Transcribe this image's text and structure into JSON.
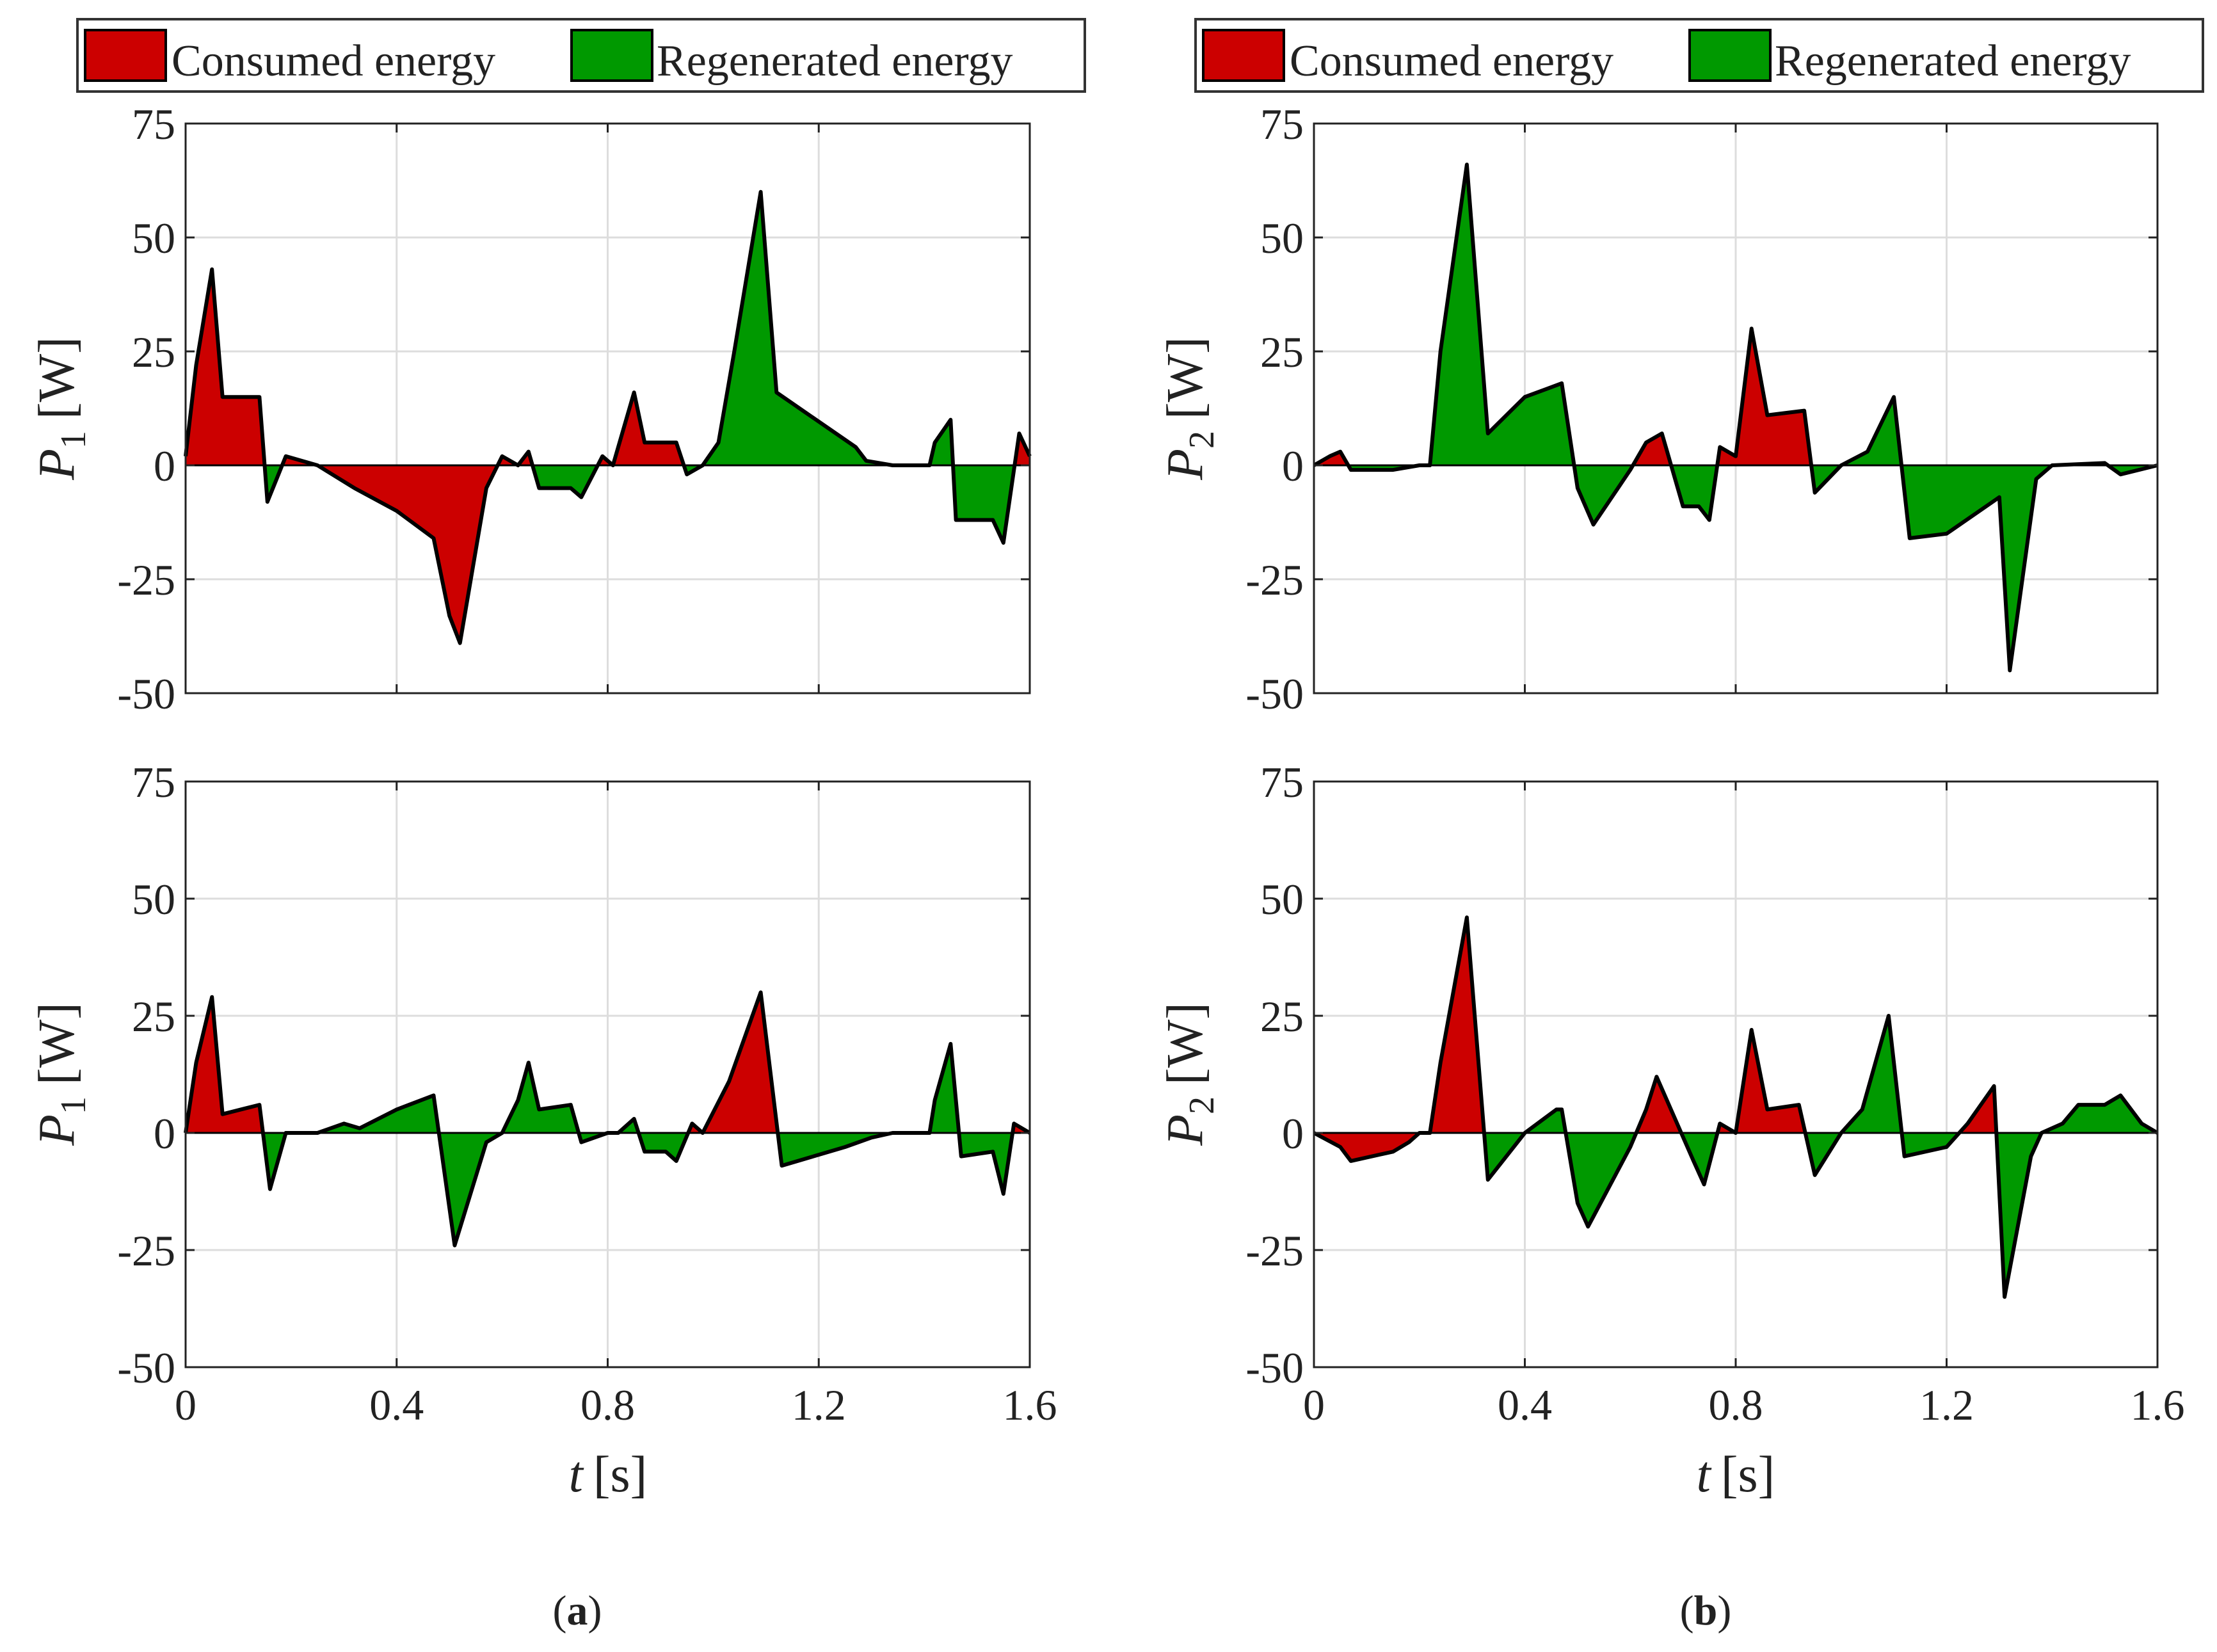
{
  "colors": {
    "consumed": "#cc0000",
    "regenerated": "#009900",
    "grid": "#dddddd",
    "axis": "#222222",
    "curve": "#000000"
  },
  "captions": {
    "a": {
      "open": "(",
      "letter": "a",
      "close": ")"
    },
    "b": {
      "open": "(",
      "letter": "b",
      "close": ")"
    }
  },
  "chart_data": [
    {
      "id": "p1-top",
      "type": "area",
      "legend": [
        "Consumed energy",
        "Regenerated energy"
      ],
      "ylabel": {
        "symbol": "P",
        "sub": "1",
        "unit": "[W]"
      },
      "xlabel": null,
      "xlim": [
        0,
        1.6
      ],
      "ylim": [
        -50,
        75
      ],
      "xticks": [
        0,
        0.4,
        0.8,
        1.2,
        1.6
      ],
      "xtick_labels": [],
      "yticks": [
        75,
        50,
        25,
        0,
        -25,
        -50
      ],
      "ytick_labels": [
        "75",
        "50",
        "25",
        "0",
        "-25",
        "-50"
      ],
      "grid": true,
      "x": [
        0,
        0.02,
        0.05,
        0.07,
        0.14,
        0.155,
        0.19,
        0.25,
        0.32,
        0.4,
        0.47,
        0.5,
        0.52,
        0.57,
        0.6,
        0.63,
        0.65,
        0.67,
        0.73,
        0.75,
        0.79,
        0.81,
        0.85,
        0.87,
        0.93,
        0.95,
        0.98,
        1.01,
        1.04,
        1.09,
        1.12,
        1.17,
        1.22,
        1.27,
        1.29,
        1.34,
        1.41,
        1.42,
        1.45,
        1.46,
        1.53,
        1.55,
        1.58,
        1.6
      ],
      "y": [
        2,
        22,
        43,
        15,
        15,
        -8,
        2,
        0,
        -5,
        -10,
        -16,
        -33,
        -39,
        -5,
        2,
        0,
        3,
        -5,
        -5,
        -7,
        2,
        0,
        16,
        5,
        5,
        -2,
        0,
        5,
        25,
        60,
        16,
        12,
        8,
        4,
        1,
        0,
        0,
        5,
        10,
        -12,
        -12,
        -17,
        7,
        2
      ]
    },
    {
      "id": "p2-top",
      "type": "area",
      "legend": [
        "Consumed energy",
        "Regenerated energy"
      ],
      "ylabel": {
        "symbol": "P",
        "sub": "2",
        "unit": "[W]"
      },
      "xlabel": null,
      "xlim": [
        0,
        1.6
      ],
      "ylim": [
        -50,
        75
      ],
      "xticks": [
        0,
        0.4,
        0.8,
        1.2,
        1.6
      ],
      "xtick_labels": [],
      "yticks": [
        75,
        50,
        25,
        0,
        -25,
        -50
      ],
      "ytick_labels": [
        "75",
        "50",
        "25",
        "0",
        "-25",
        "-50"
      ],
      "grid": true,
      "x": [
        0,
        0.03,
        0.05,
        0.07,
        0.15,
        0.2,
        0.22,
        0.24,
        0.29,
        0.33,
        0.4,
        0.47,
        0.5,
        0.53,
        0.6,
        0.63,
        0.66,
        0.7,
        0.73,
        0.75,
        0.77,
        0.8,
        0.83,
        0.86,
        0.93,
        0.95,
        1.0,
        1.05,
        1.1,
        1.13,
        1.2,
        1.3,
        1.32,
        1.37,
        1.4,
        1.5,
        1.53,
        1.6
      ],
      "y": [
        0,
        2,
        3,
        -1,
        -1,
        0,
        0,
        25,
        66,
        7,
        15,
        18,
        -5,
        -13,
        -1,
        5,
        7,
        -9,
        -9,
        -12,
        4,
        2,
        30,
        11,
        12,
        -6,
        0,
        3,
        15,
        -16,
        -15,
        -7,
        -45,
        -3,
        0,
        0.5,
        -2,
        0
      ]
    },
    {
      "id": "p1-bottom",
      "type": "area",
      "legend": [],
      "ylabel": {
        "symbol": "P",
        "sub": "1",
        "unit": "[W]"
      },
      "xlabel": {
        "symbol": "t",
        "unit": "[s]"
      },
      "xlim": [
        0,
        1.6
      ],
      "ylim": [
        -50,
        75
      ],
      "xticks": [
        0,
        0.4,
        0.8,
        1.2,
        1.6
      ],
      "xtick_labels": [
        "0",
        "0.4",
        "0.8",
        "1.2",
        "1.6"
      ],
      "yticks": [
        75,
        50,
        25,
        0,
        -25,
        -50
      ],
      "ytick_labels": [
        "75",
        "50",
        "25",
        "0",
        "-25",
        "-50"
      ],
      "grid": true,
      "x": [
        0,
        0.02,
        0.05,
        0.07,
        0.14,
        0.16,
        0.19,
        0.25,
        0.3,
        0.33,
        0.4,
        0.47,
        0.51,
        0.57,
        0.6,
        0.63,
        0.65,
        0.67,
        0.73,
        0.75,
        0.8,
        0.82,
        0.85,
        0.87,
        0.91,
        0.93,
        0.96,
        0.98,
        1.03,
        1.09,
        1.13,
        1.25,
        1.3,
        1.34,
        1.41,
        1.42,
        1.45,
        1.47,
        1.53,
        1.55,
        1.57,
        1.6
      ],
      "y": [
        0,
        15,
        29,
        4,
        6,
        -12,
        0,
        0,
        2,
        1,
        5,
        8,
        -24,
        -2,
        0,
        7,
        15,
        5,
        6,
        -2,
        0,
        0,
        3,
        -4,
        -4,
        -6,
        2,
        0,
        11,
        30,
        -7,
        -3,
        -1,
        0,
        0,
        7,
        19,
        -5,
        -4,
        -13,
        2,
        0
      ]
    },
    {
      "id": "p2-bottom",
      "type": "area",
      "legend": [],
      "ylabel": {
        "symbol": "P",
        "sub": "2",
        "unit": "[W]"
      },
      "xlabel": {
        "symbol": "t",
        "unit": "[s]"
      },
      "xlim": [
        0,
        1.6
      ],
      "ylim": [
        -50,
        75
      ],
      "xticks": [
        0,
        0.4,
        0.8,
        1.2,
        1.6
      ],
      "xtick_labels": [
        "0",
        "0.4",
        "0.8",
        "1.2",
        "1.6"
      ],
      "yticks": [
        75,
        50,
        25,
        0,
        -25,
        -50
      ],
      "ytick_labels": [
        "75",
        "50",
        "25",
        "0",
        "-25",
        "-50"
      ],
      "grid": true,
      "x": [
        0,
        0.05,
        0.07,
        0.15,
        0.18,
        0.2,
        0.22,
        0.24,
        0.29,
        0.33,
        0.4,
        0.46,
        0.47,
        0.5,
        0.52,
        0.6,
        0.63,
        0.65,
        0.72,
        0.74,
        0.77,
        0.8,
        0.83,
        0.86,
        0.92,
        0.95,
        1.0,
        1.04,
        1.09,
        1.12,
        1.2,
        1.24,
        1.29,
        1.31,
        1.36,
        1.38,
        1.42,
        1.45,
        1.5,
        1.53,
        1.57,
        1.6
      ],
      "y": [
        0,
        -3,
        -6,
        -4,
        -2,
        0,
        0,
        15,
        46,
        -10,
        0,
        5,
        5,
        -15,
        -20,
        -3,
        5,
        12,
        -6,
        -11,
        2,
        0,
        22,
        5,
        6,
        -9,
        0,
        5,
        25,
        -5,
        -3,
        2,
        10,
        -35,
        -5,
        0,
        2,
        6,
        6,
        8,
        2,
        0
      ]
    }
  ]
}
